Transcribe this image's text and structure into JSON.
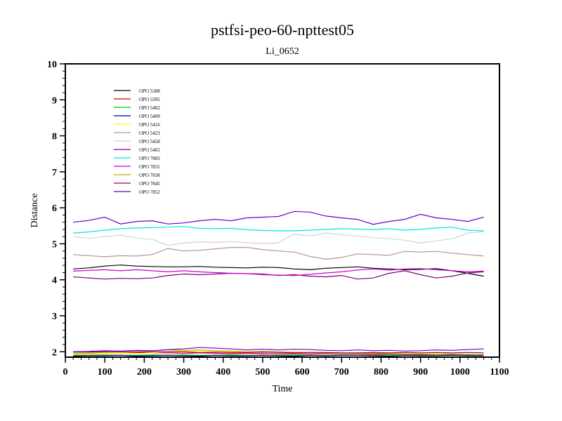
{
  "chart_data": {
    "type": "line",
    "title": "pstfsi-peo-60-npttest05",
    "subtitle": "Li_0652",
    "xlabel": "Time",
    "ylabel": "Distance",
    "xlim": [
      0,
      1100
    ],
    "ylim": [
      1.85,
      10
    ],
    "xticks": [
      "0",
      "100",
      "200",
      "300",
      "400",
      "500",
      "600",
      "700",
      "800",
      "900",
      "1000",
      "1100"
    ],
    "yticks": [
      "2",
      "3",
      "4",
      "5",
      "6",
      "7",
      "8",
      "9",
      "10"
    ],
    "x": [
      20,
      60,
      100,
      140,
      180,
      220,
      260,
      300,
      340,
      380,
      420,
      460,
      500,
      540,
      580,
      620,
      660,
      700,
      740,
      780,
      820,
      860,
      900,
      940,
      980,
      1020,
      1060
    ],
    "legend_position": "top-left",
    "series": [
      {
        "name": "OPO 5388",
        "color": "#000000",
        "values": [
          4.3,
          4.33,
          4.38,
          4.41,
          4.38,
          4.37,
          4.36,
          4.36,
          4.37,
          4.35,
          4.34,
          4.33,
          4.35,
          4.34,
          4.3,
          4.28,
          4.32,
          4.34,
          4.36,
          4.32,
          4.3,
          4.28,
          4.29,
          4.31,
          4.25,
          4.18,
          4.1
        ]
      },
      {
        "name": "OPO 5395",
        "color": "#cc0000",
        "values": [
          2.0,
          2.0,
          2.0,
          1.99,
          1.98,
          1.97,
          1.97,
          1.96,
          1.97,
          1.96,
          1.95,
          1.96,
          1.95,
          1.94,
          1.95,
          1.94,
          1.95,
          1.95,
          1.94,
          1.93,
          1.94,
          1.93,
          1.92,
          1.93,
          1.93,
          1.92,
          1.93
        ]
      },
      {
        "name": "OPO 5402",
        "color": "#00cc00",
        "values": [
          1.9,
          1.9,
          1.91,
          1.9,
          1.9,
          1.91,
          1.9,
          1.91,
          1.9,
          1.9,
          1.91,
          1.9,
          1.9,
          1.9,
          1.91,
          1.9,
          1.9,
          1.91,
          1.9,
          1.9,
          1.91,
          1.9,
          1.9,
          1.9,
          1.91,
          1.9,
          1.9
        ]
      },
      {
        "name": "OPO 5409",
        "color": "#000080",
        "values": [
          1.88,
          1.89,
          1.89,
          1.9,
          1.88,
          1.89,
          1.9,
          1.89,
          1.88,
          1.9,
          1.89,
          1.89,
          1.9,
          1.89,
          1.88,
          1.9,
          1.89,
          1.9,
          1.9,
          1.89,
          1.88,
          1.9,
          1.89,
          1.89,
          1.9,
          1.89,
          1.89
        ]
      },
      {
        "name": "OPO 5416",
        "color": "#ffff00",
        "values": [
          1.92,
          1.93,
          1.95,
          1.96,
          1.95,
          1.97,
          2.0,
          2.02,
          2.03,
          2.02,
          2.0,
          1.99,
          2.0,
          1.99,
          1.98,
          1.99,
          1.98,
          1.97,
          1.96,
          1.97,
          1.96,
          1.95,
          1.94,
          1.95,
          1.94,
          1.93,
          1.93
        ]
      },
      {
        "name": "OPO 5423",
        "color": "#bc8f8f",
        "values": [
          4.7,
          4.67,
          4.64,
          4.67,
          4.66,
          4.7,
          4.87,
          4.8,
          4.82,
          4.86,
          4.9,
          4.9,
          4.84,
          4.8,
          4.77,
          4.65,
          4.57,
          4.62,
          4.72,
          4.7,
          4.68,
          4.79,
          4.77,
          4.79,
          4.74,
          4.7,
          4.66
        ]
      },
      {
        "name": "OPO 5458",
        "color": "#d3d3d3",
        "values": [
          5.2,
          5.15,
          5.2,
          5.24,
          5.16,
          5.12,
          4.96,
          5.02,
          5.05,
          5.04,
          5.06,
          5.03,
          5.0,
          5.03,
          5.27,
          5.22,
          5.3,
          5.25,
          5.22,
          5.17,
          5.14,
          5.1,
          5.02,
          5.08,
          5.14,
          5.3,
          5.34
        ]
      },
      {
        "name": "OPO 5465",
        "color": "#800080",
        "values": [
          4.08,
          4.05,
          4.02,
          4.04,
          4.03,
          4.05,
          4.12,
          4.16,
          4.14,
          4.16,
          4.18,
          4.17,
          4.16,
          4.12,
          4.14,
          4.1,
          4.08,
          4.12,
          4.02,
          4.05,
          4.18,
          4.25,
          4.14,
          4.05,
          4.1,
          4.19,
          4.22
        ]
      },
      {
        "name": "OPO 7803",
        "color": "#00e5e5",
        "values": [
          5.3,
          5.33,
          5.38,
          5.42,
          5.44,
          5.45,
          5.46,
          5.48,
          5.43,
          5.42,
          5.43,
          5.39,
          5.37,
          5.36,
          5.36,
          5.38,
          5.4,
          5.42,
          5.41,
          5.39,
          5.42,
          5.38,
          5.4,
          5.44,
          5.46,
          5.38,
          5.36
        ]
      },
      {
        "name": "OPO 7831",
        "color": "#cc00cc",
        "values": [
          4.24,
          4.26,
          4.28,
          4.25,
          4.28,
          4.25,
          4.22,
          4.25,
          4.22,
          4.2,
          4.18,
          4.17,
          4.14,
          4.13,
          4.12,
          4.15,
          4.19,
          4.22,
          4.27,
          4.3,
          4.27,
          4.3,
          4.31,
          4.28,
          4.25,
          4.22,
          4.24
        ]
      },
      {
        "name": "OPO 7838",
        "color": "#ccaa00",
        "values": [
          1.95,
          1.96,
          1.98,
          1.99,
          2.0,
          2.02,
          2.05,
          2.04,
          2.05,
          2.03,
          2.02,
          2.0,
          2.01,
          2.0,
          1.99,
          1.98,
          1.97,
          1.96,
          1.95,
          1.96,
          1.95,
          1.94,
          1.94,
          1.93,
          1.94,
          1.93,
          1.92
        ]
      },
      {
        "name": "OPO 7845",
        "color": "#990066",
        "values": [
          1.99,
          1.99,
          2.0,
          2.0,
          2.0,
          2.0,
          2.0,
          2.0,
          1.98,
          1.99,
          1.98,
          1.98,
          1.99,
          1.98,
          1.97,
          1.98,
          1.98,
          1.97,
          1.97,
          1.98,
          1.97,
          1.98,
          1.97,
          1.98,
          1.97,
          1.98,
          1.97
        ]
      },
      {
        "name": "OPO 7852",
        "color": "#6a00cc",
        "values": [
          5.6,
          5.65,
          5.74,
          5.55,
          5.62,
          5.64,
          5.55,
          5.58,
          5.64,
          5.68,
          5.64,
          5.72,
          5.74,
          5.76,
          5.9,
          5.88,
          5.77,
          5.72,
          5.68,
          5.54,
          5.62,
          5.68,
          5.82,
          5.72,
          5.68,
          5.62,
          5.74
        ]
      },
      {
        "name": "",
        "color": "#6a00cc",
        "values": [
          2.0,
          2.01,
          2.03,
          2.02,
          2.04,
          2.03,
          2.06,
          2.08,
          2.12,
          2.1,
          2.08,
          2.05,
          2.07,
          2.05,
          2.07,
          2.06,
          2.04,
          2.03,
          2.05,
          2.03,
          2.04,
          2.02,
          2.03,
          2.05,
          2.04,
          2.06,
          2.08
        ]
      }
    ]
  }
}
